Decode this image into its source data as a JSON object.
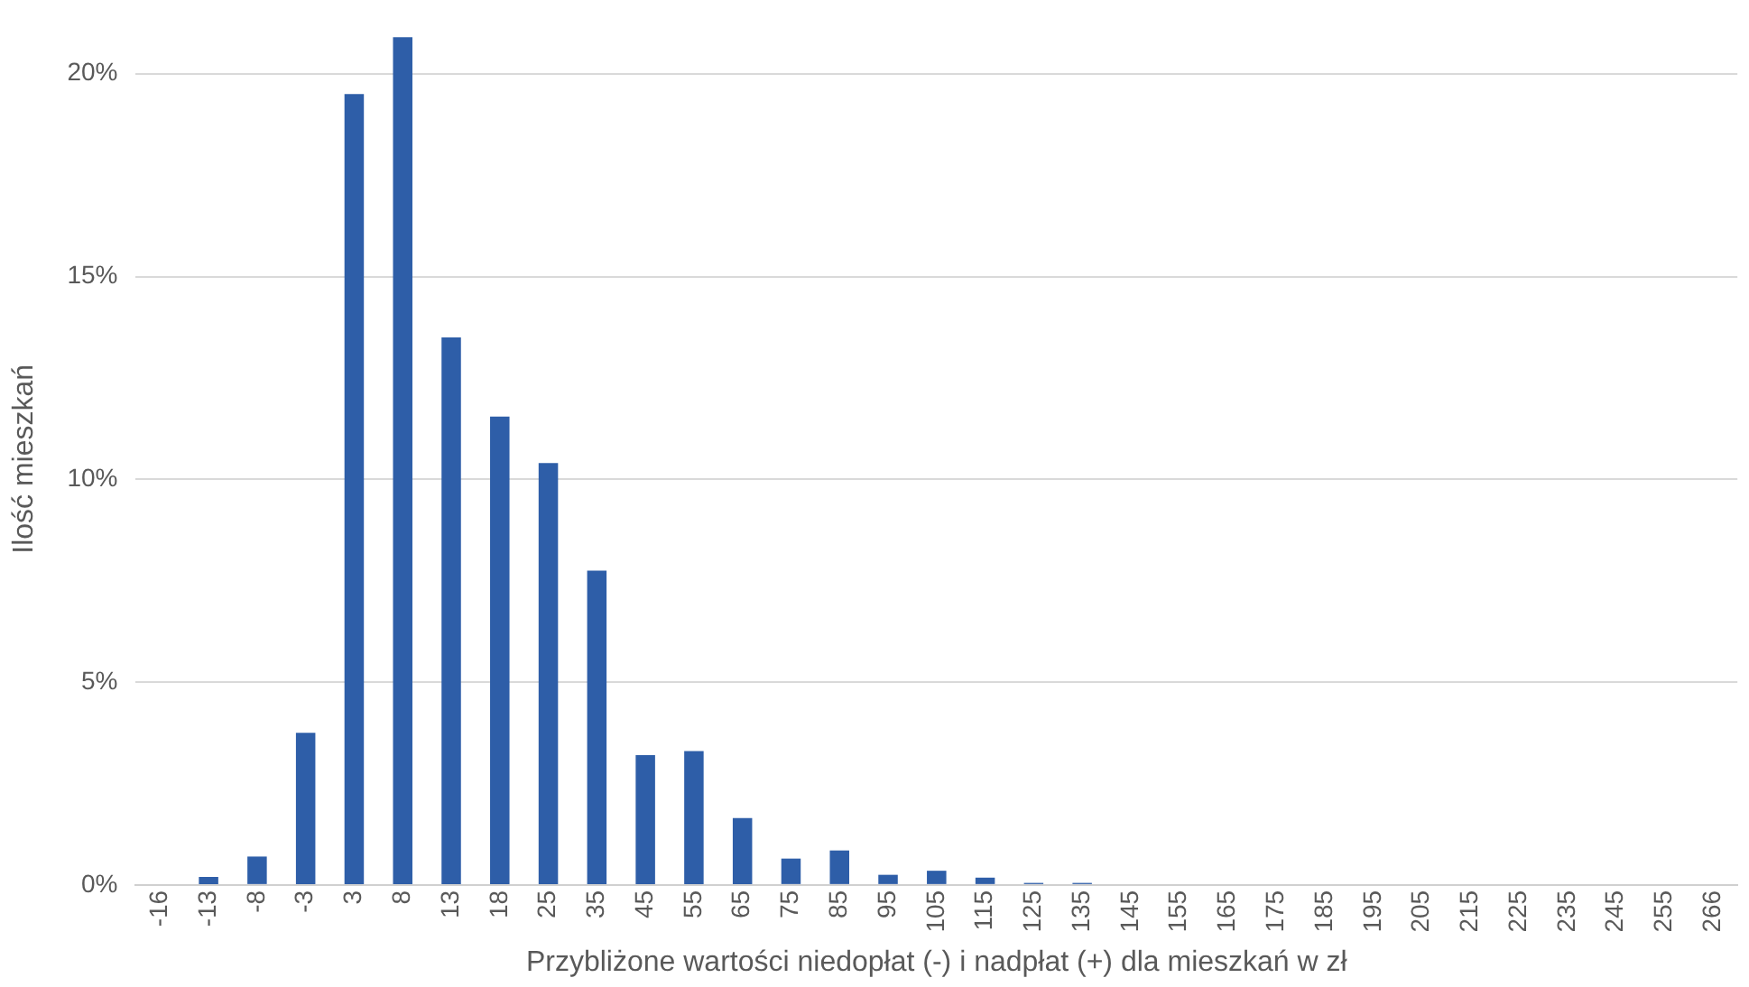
{
  "chart_data": {
    "type": "bar",
    "xlabel": "Przybliżone wartości niedopłat (-) i nadpłat (+) dla mieszkań w zł",
    "ylabel": "Ilość mieszkań",
    "categories": [
      "-16",
      "-13",
      "-8",
      "-3",
      "3",
      "8",
      "13",
      "18",
      "25",
      "35",
      "45",
      "55",
      "65",
      "75",
      "85",
      "95",
      "105",
      "115",
      "125",
      "135",
      "145",
      "155",
      "165",
      "175",
      "185",
      "195",
      "205",
      "215",
      "225",
      "235",
      "245",
      "255",
      "266"
    ],
    "values": [
      0,
      0.2,
      0.7,
      3.75,
      19.5,
      20.9,
      13.5,
      11.55,
      10.4,
      7.75,
      3.2,
      3.3,
      1.65,
      0.65,
      0.85,
      0.25,
      0.35,
      0.18,
      0.05,
      0.05,
      0,
      0,
      0,
      0,
      0,
      0,
      0,
      0,
      0,
      0,
      0,
      0,
      0
    ],
    "color": "#2e5ea8",
    "ylim": [
      0,
      21
    ],
    "yticks": [
      {
        "value": 0,
        "label": "0%"
      },
      {
        "value": 5,
        "label": "5%"
      },
      {
        "value": 10,
        "label": "10%"
      },
      {
        "value": 15,
        "label": "15%"
      },
      {
        "value": 20,
        "label": "20%"
      }
    ],
    "grid": "y",
    "legend": false
  }
}
